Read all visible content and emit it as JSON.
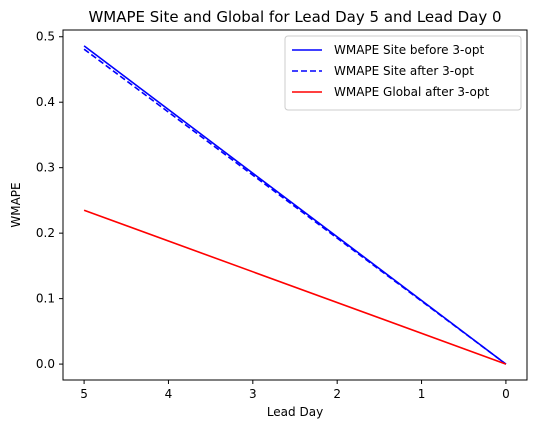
{
  "chart_data": {
    "type": "line",
    "title": "WMAPE Site and Global for Lead Day 5 and Lead Day 0",
    "xlabel": "Lead Day",
    "ylabel": "WMAPE",
    "x": [
      5,
      0
    ],
    "xlim": [
      5.25,
      -0.25
    ],
    "ylim": [
      -0.0243,
      0.5103
    ],
    "x_inverted": true,
    "xticks": [
      5,
      4,
      3,
      2,
      1,
      0
    ],
    "xtick_labels": [
      "5",
      "4",
      "3",
      "2",
      "1",
      "0"
    ],
    "yticks": [
      0.0,
      0.1,
      0.2,
      0.3,
      0.4,
      0.5
    ],
    "ytick_labels": [
      "0.0",
      "0.1",
      "0.2",
      "0.3",
      "0.4",
      "0.5"
    ],
    "grid": false,
    "legend_position": "top-right",
    "series": [
      {
        "name": "WMAPE Site before 3-opt",
        "values": [
          0.486,
          0.0
        ],
        "color": "#0000ff",
        "style": "solid"
      },
      {
        "name": "WMAPE Site after 3-opt",
        "values": [
          0.481,
          0.0
        ],
        "color": "#0000ff",
        "style": "dashed"
      },
      {
        "name": "WMAPE Global after 3-opt",
        "values": [
          0.235,
          0.0
        ],
        "color": "#ff0000",
        "style": "solid"
      }
    ]
  }
}
